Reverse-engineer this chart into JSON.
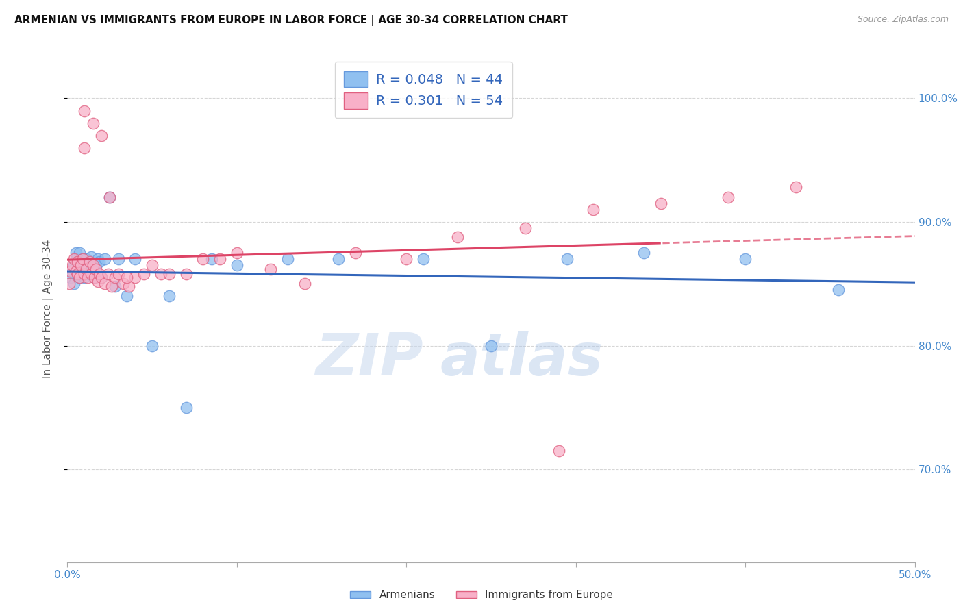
{
  "title": "ARMENIAN VS IMMIGRANTS FROM EUROPE IN LABOR FORCE | AGE 30-34 CORRELATION CHART",
  "source": "Source: ZipAtlas.com",
  "ylabel": "In Labor Force | Age 30-34",
  "yaxis_labels": [
    "70.0%",
    "80.0%",
    "90.0%",
    "100.0%"
  ],
  "yaxis_values": [
    0.7,
    0.8,
    0.9,
    1.0
  ],
  "xlim": [
    0.0,
    0.5
  ],
  "ylim": [
    0.625,
    1.035
  ],
  "legend_label1": "Armenians",
  "legend_label2": "Immigrants from Europe",
  "watermark_text": "ZIP",
  "watermark_text2": "atlas",
  "armenian_x": [
    0.002,
    0.003,
    0.004,
    0.004,
    0.005,
    0.005,
    0.006,
    0.006,
    0.007,
    0.007,
    0.008,
    0.008,
    0.009,
    0.01,
    0.01,
    0.011,
    0.012,
    0.013,
    0.014,
    0.015,
    0.016,
    0.017,
    0.018,
    0.019,
    0.02,
    0.022,
    0.025,
    0.028,
    0.03,
    0.035,
    0.04,
    0.05,
    0.06,
    0.07,
    0.085,
    0.1,
    0.13,
    0.16,
    0.21,
    0.25,
    0.295,
    0.34,
    0.4,
    0.455
  ],
  "armenian_y": [
    0.855,
    0.86,
    0.85,
    0.865,
    0.87,
    0.875,
    0.86,
    0.868,
    0.855,
    0.875,
    0.862,
    0.858,
    0.87,
    0.855,
    0.865,
    0.87,
    0.862,
    0.858,
    0.872,
    0.86,
    0.855,
    0.865,
    0.87,
    0.868,
    0.855,
    0.87,
    0.92,
    0.848,
    0.87,
    0.84,
    0.87,
    0.8,
    0.84,
    0.75,
    0.87,
    0.865,
    0.87,
    0.87,
    0.87,
    0.8,
    0.87,
    0.875,
    0.87,
    0.845
  ],
  "europe_x": [
    0.001,
    0.002,
    0.003,
    0.004,
    0.005,
    0.006,
    0.006,
    0.007,
    0.008,
    0.009,
    0.01,
    0.01,
    0.011,
    0.012,
    0.013,
    0.014,
    0.015,
    0.016,
    0.017,
    0.018,
    0.019,
    0.02,
    0.022,
    0.024,
    0.026,
    0.028,
    0.03,
    0.033,
    0.036,
    0.04,
    0.045,
    0.05,
    0.055,
    0.06,
    0.07,
    0.08,
    0.09,
    0.1,
    0.12,
    0.14,
    0.17,
    0.2,
    0.23,
    0.27,
    0.31,
    0.35,
    0.39,
    0.43,
    0.01,
    0.015,
    0.02,
    0.025,
    0.035,
    0.29
  ],
  "europe_y": [
    0.85,
    0.86,
    0.865,
    0.87,
    0.86,
    0.868,
    0.858,
    0.855,
    0.865,
    0.87,
    0.99,
    0.858,
    0.862,
    0.855,
    0.868,
    0.858,
    0.865,
    0.855,
    0.862,
    0.852,
    0.858,
    0.855,
    0.85,
    0.858,
    0.848,
    0.855,
    0.858,
    0.85,
    0.848,
    0.855,
    0.858,
    0.865,
    0.858,
    0.858,
    0.858,
    0.87,
    0.87,
    0.875,
    0.862,
    0.85,
    0.875,
    0.87,
    0.888,
    0.895,
    0.91,
    0.915,
    0.92,
    0.928,
    0.96,
    0.98,
    0.97,
    0.92,
    0.855,
    0.715
  ],
  "blue_scatter_color": "#90c0f0",
  "blue_edge_color": "#6699dd",
  "pink_scatter_color": "#f8b0c8",
  "pink_edge_color": "#e06080",
  "blue_line_color": "#3366bb",
  "pink_line_color": "#dd4466",
  "grid_color": "#cccccc",
  "title_color": "#111111",
  "axis_tick_color": "#4488cc",
  "right_axis_color": "#4488cc"
}
